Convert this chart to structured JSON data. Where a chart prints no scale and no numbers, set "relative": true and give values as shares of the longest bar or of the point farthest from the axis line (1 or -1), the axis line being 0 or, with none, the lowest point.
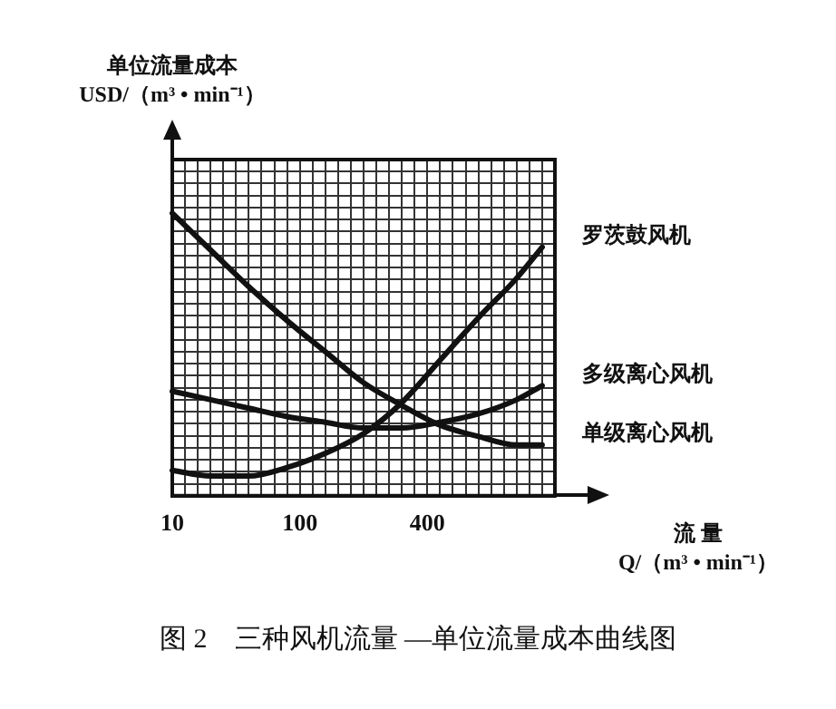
{
  "chart_data": {
    "type": "line",
    "title": "图 2　三种风机流量 —单位流量成本曲线图",
    "ylabel": "单位流量成本\nUSD/（m³ • min⁻¹）",
    "xlabel": "流 量\nQ/（m³ • min⁻¹）",
    "relative": true,
    "grid": true,
    "legend": false,
    "marker": "none",
    "line_style": "solid",
    "categories": [
      "10",
      null,
      null,
      null,
      null,
      null,
      null,
      null,
      null,
      null,
      "100",
      null,
      null,
      null,
      null,
      null,
      null,
      null,
      null,
      null,
      "400",
      null,
      null,
      null,
      null,
      null,
      null,
      null,
      null,
      null,
      null
    ],
    "series": [
      {
        "name": "罗茨鼓风机",
        "color": "#111111",
        "values": [
          0.09,
          null,
          null,
          0.07,
          null,
          null,
          0.07,
          null,
          null,
          0.1,
          null,
          null,
          0.15,
          null,
          null,
          0.22,
          null,
          null,
          0.33,
          null,
          null,
          0.48,
          null,
          null,
          0.63,
          null,
          null,
          0.77,
          null,
          0.88,
          null
        ]
      },
      {
        "name": "多级离心风机",
        "color": "#111111",
        "values": [
          0.37,
          null,
          null,
          0.34,
          null,
          null,
          0.31,
          null,
          null,
          0.28,
          null,
          null,
          0.26,
          null,
          null,
          0.24,
          null,
          null,
          0.24,
          null,
          null,
          0.26,
          null,
          null,
          0.29,
          null,
          null,
          0.34,
          null,
          0.39,
          null
        ]
      },
      {
        "name": "单级离心风机",
        "color": "#111111",
        "values": [
          1.0,
          null,
          null,
          0.87,
          null,
          null,
          0.74,
          null,
          null,
          0.62,
          null,
          null,
          0.51,
          null,
          null,
          0.4,
          null,
          null,
          0.32,
          null,
          null,
          0.25,
          null,
          null,
          0.21,
          null,
          null,
          0.18,
          null,
          0.18,
          null
        ]
      }
    ]
  }
}
